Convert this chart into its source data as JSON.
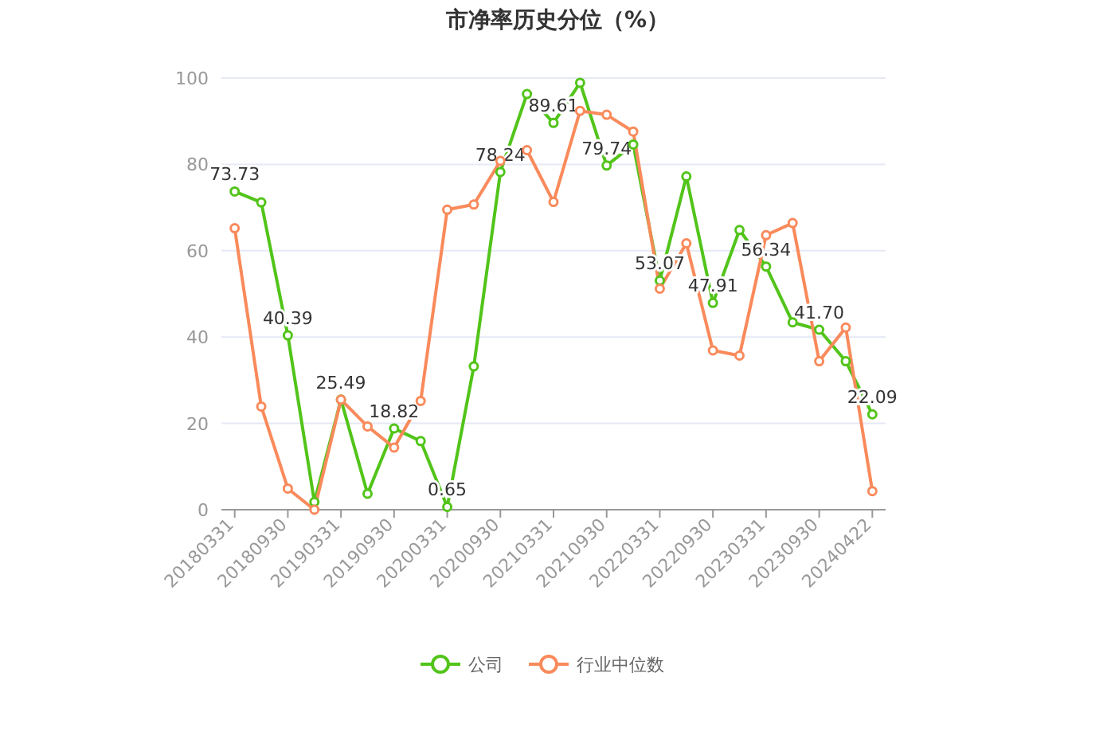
{
  "chart_data": {
    "type": "line",
    "title": "市净率历史分位（%）",
    "categories": [
      "20180331",
      null,
      "20180930",
      null,
      "20190331",
      null,
      "20190930",
      null,
      "20200331",
      null,
      "20200930",
      null,
      "20210331",
      null,
      "20210930",
      null,
      "20220331",
      null,
      "20220930",
      null,
      "20230331",
      null,
      "20230930",
      null,
      "20240422"
    ],
    "series": [
      {
        "name": "公司",
        "color": "#52c41a",
        "values": [
          73.73,
          71.2,
          40.39,
          1.8,
          25.49,
          3.7,
          18.82,
          15.9,
          0.65,
          33.2,
          78.24,
          96.3,
          89.61,
          98.9,
          79.74,
          84.6,
          53.07,
          77.2,
          47.91,
          64.8,
          56.34,
          43.4,
          41.7,
          34.4,
          22.09
        ],
        "value_labels": [
          "73.73",
          null,
          "40.39",
          null,
          "25.49",
          null,
          "18.82",
          null,
          "0.65",
          null,
          "78.24",
          null,
          "89.61",
          null,
          "79.74",
          null,
          "53.07",
          null,
          "47.91",
          null,
          "56.34",
          null,
          "41.70",
          null,
          "22.09"
        ]
      },
      {
        "name": "行业中位数",
        "color": "#f98a5b",
        "values": [
          65.2,
          23.9,
          4.9,
          0,
          25.5,
          19.3,
          14.4,
          25.2,
          69.5,
          70.7,
          80.8,
          83.3,
          71.3,
          92.4,
          91.5,
          87.6,
          51.2,
          61.7,
          36.9,
          35.7,
          63.6,
          66.4,
          34.4,
          42.2,
          4.3
        ]
      }
    ],
    "ylim": [
      0,
      100
    ],
    "yticks": [
      0,
      20,
      40,
      60,
      80,
      100
    ],
    "grid": "y",
    "legend": "bottom",
    "marker": "circle"
  }
}
